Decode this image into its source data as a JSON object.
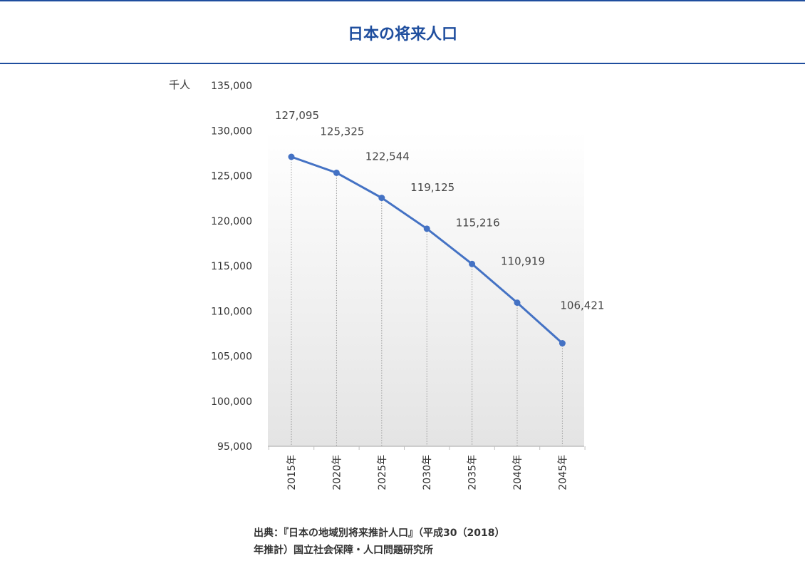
{
  "title": "日本の将来人口",
  "chart_data": {
    "type": "line",
    "title": "日本の将来人口",
    "ylabel": "千人",
    "xlabel": "",
    "categories": [
      "2015年",
      "2020年",
      "2025年",
      "2030年",
      "2035年",
      "2040年",
      "2045年"
    ],
    "series": [
      {
        "values": [
          127095,
          125325,
          122544,
          119125,
          115216,
          110919,
          106421
        ]
      }
    ],
    "data_labels": [
      "127,095",
      "125,325",
      "122,544",
      "119,125",
      "115,216",
      "110,919",
      "106,421"
    ],
    "ylim": [
      95000,
      135000
    ],
    "yticks": [
      95000,
      100000,
      105000,
      110000,
      115000,
      120000,
      125000,
      130000,
      135000
    ],
    "ytick_labels": [
      "95,000",
      "100,000",
      "105,000",
      "110,000",
      "115,000",
      "120,000",
      "125,000",
      "130,000",
      "135,000"
    ],
    "grid": false,
    "drop_lines": true,
    "colors": {
      "line": "#4472c4",
      "plot_gradient_end": "#e4e4e4"
    }
  },
  "source": {
    "line1": "出典：『日本の地域別将来推計人口』（平成30（2018）",
    "line2": "年推計）国立社会保障・人口問題研究所"
  }
}
